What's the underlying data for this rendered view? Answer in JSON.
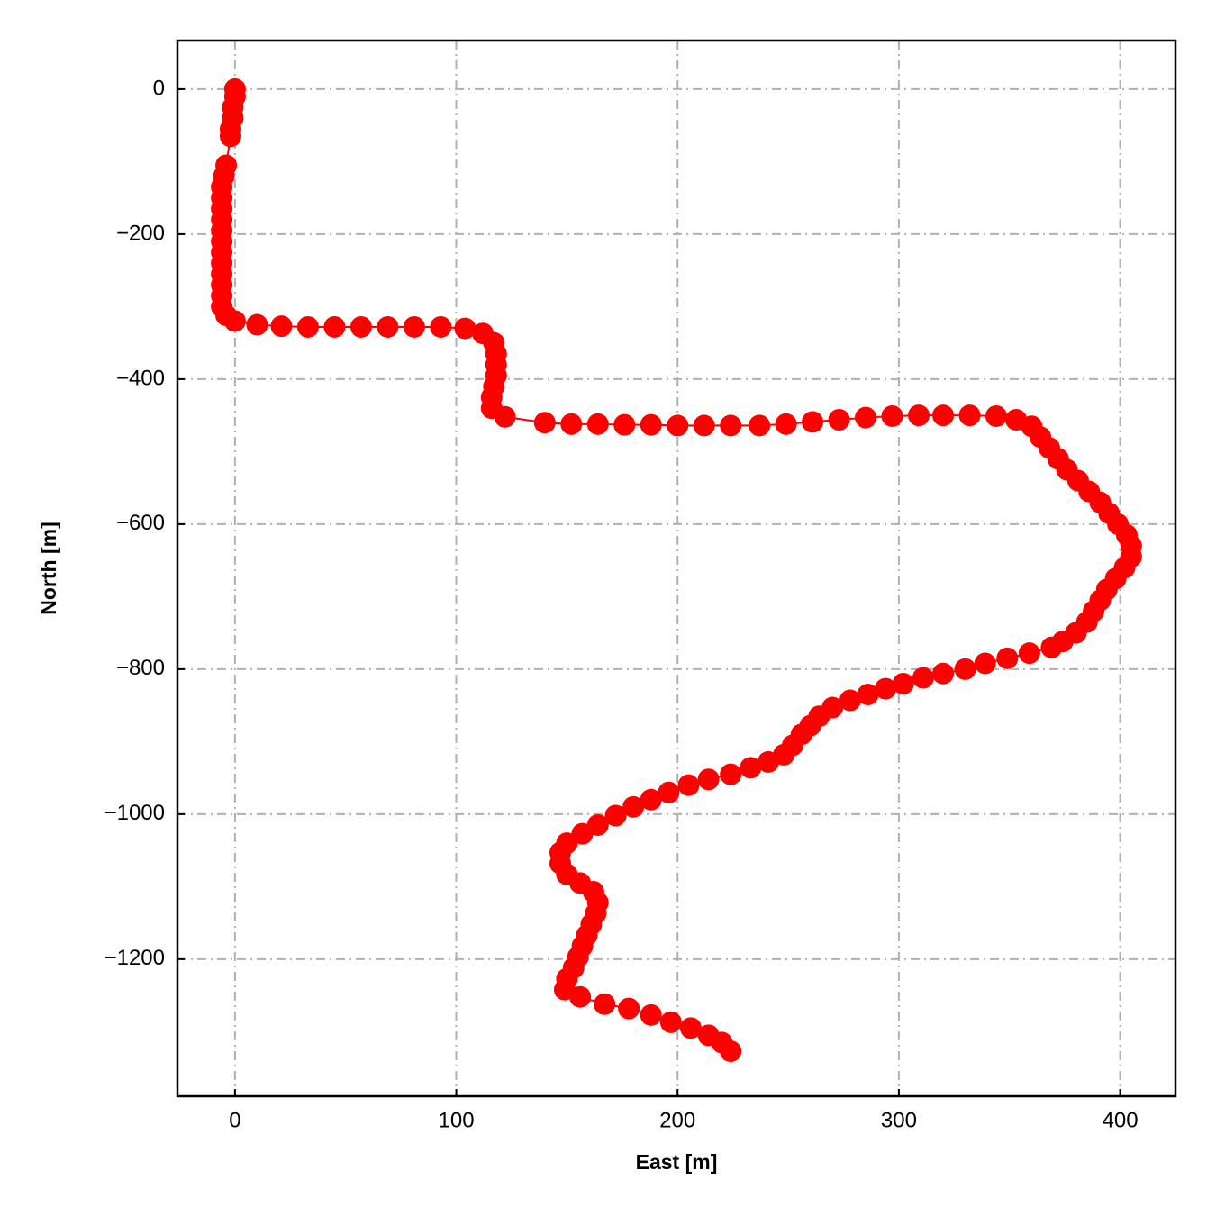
{
  "chart_data": {
    "type": "line",
    "xlabel": "East [m]",
    "ylabel": "North [m]",
    "color": "#ff0000",
    "grid": true,
    "xlim": [
      -26,
      425
    ],
    "ylim": [
      -1389,
      67
    ],
    "xticks": [
      0,
      100,
      200,
      300,
      400
    ],
    "yticks": [
      0,
      {
        "value": -200,
        "label": "−200"
      },
      {
        "value": -400,
        "label": "−400"
      },
      {
        "value": -600,
        "label": "−600"
      },
      {
        "value": -800,
        "label": "−800"
      },
      {
        "value": -1000,
        "label": "−1000"
      },
      {
        "value": -1200,
        "label": "−1200"
      }
    ],
    "x": [
      0,
      0,
      -1,
      -1,
      -2,
      -2,
      -4,
      -5,
      -6,
      -6,
      -6,
      -6,
      -6,
      -6,
      -6,
      -6,
      -6,
      -6,
      -6,
      -6,
      -4,
      0,
      10,
      21,
      33,
      45,
      57,
      69,
      81,
      93,
      104,
      112,
      117,
      118,
      118,
      118,
      117,
      116,
      116,
      122,
      140,
      152,
      164,
      176,
      188,
      200,
      212,
      224,
      237,
      249,
      261,
      273,
      285,
      297,
      309,
      320,
      332,
      344,
      353,
      360,
      364,
      368,
      372,
      376,
      381,
      386,
      391,
      395,
      399,
      403,
      405,
      405,
      402,
      398,
      394,
      391,
      388,
      385,
      380,
      374,
      369,
      359,
      349,
      339,
      330,
      320,
      311,
      302,
      294,
      286,
      278,
      270,
      264,
      260,
      256,
      252,
      248,
      241,
      233,
      224,
      214,
      205,
      196,
      188,
      180,
      172,
      164,
      157,
      150,
      147,
      147,
      150,
      156,
      162,
      164,
      163,
      161,
      159,
      157,
      155,
      153,
      150,
      149,
      156,
      167,
      178,
      188,
      197,
      206,
      214,
      220,
      224
    ],
    "values": [
      0,
      -10,
      -25,
      -40,
      -55,
      -65,
      -105,
      -120,
      -135,
      -150,
      -165,
      -180,
      -195,
      -210,
      -225,
      -240,
      -255,
      -270,
      -285,
      -300,
      -312,
      -320,
      -325,
      -327,
      -328,
      -328,
      -328,
      -328,
      -328,
      -328,
      -330,
      -337,
      -350,
      -365,
      -380,
      -395,
      -410,
      -425,
      -440,
      -452,
      -460,
      -462,
      -462,
      -463,
      -463,
      -464,
      -464,
      -464,
      -464,
      -462,
      -459,
      -456,
      -453,
      -451,
      -450,
      -450,
      -450,
      -451,
      -456,
      -465,
      -480,
      -495,
      -510,
      -525,
      -540,
      -555,
      -570,
      -585,
      -600,
      -615,
      -630,
      -645,
      -660,
      -675,
      -690,
      -705,
      -720,
      -735,
      -750,
      -762,
      -770,
      -778,
      -785,
      -792,
      -800,
      -806,
      -812,
      -820,
      -827,
      -835,
      -843,
      -853,
      -865,
      -878,
      -890,
      -905,
      -918,
      -928,
      -936,
      -945,
      -952,
      -960,
      -970,
      -980,
      -990,
      -1002,
      -1015,
      -1027,
      -1040,
      -1053,
      -1068,
      -1083,
      -1095,
      -1107,
      -1122,
      -1137,
      -1152,
      -1167,
      -1182,
      -1197,
      -1212,
      -1227,
      -1242,
      -1252,
      -1262,
      -1268,
      -1277,
      -1287,
      -1295,
      -1305,
      -1315,
      -1327
    ]
  }
}
